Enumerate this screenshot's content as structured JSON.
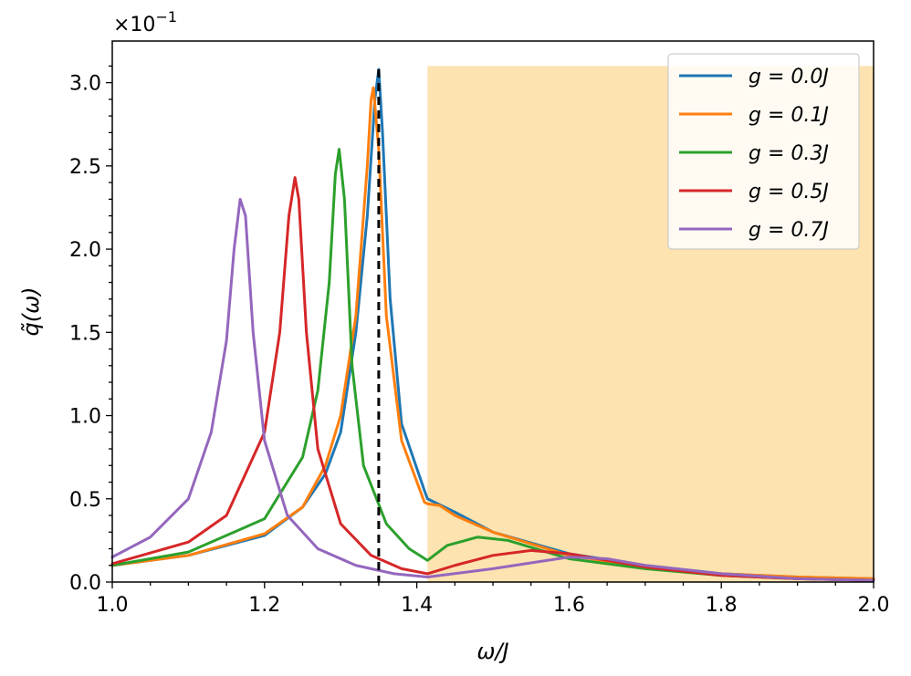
{
  "chart_data": {
    "type": "line",
    "xlabel": "ω/J",
    "ylabel": "q̃(ω)",
    "y_offset_label": "×10",
    "y_offset_exponent": "−1",
    "xlim": [
      1.0,
      2.0
    ],
    "ylim": [
      0.0,
      3.25
    ],
    "x_ticks": [
      "1.0",
      "1.2",
      "1.4",
      "1.6",
      "1.8",
      "2.0"
    ],
    "x_tick_values": [
      1.0,
      1.2,
      1.4,
      1.6,
      1.8,
      2.0
    ],
    "y_ticks": [
      "0.0",
      "0.5",
      "1.0",
      "1.5",
      "2.0",
      "2.5",
      "3.0"
    ],
    "y_tick_values": [
      0.0,
      0.5,
      1.0,
      1.5,
      2.0,
      2.5,
      3.0
    ],
    "legend_position": "top-right",
    "shaded_region": {
      "x_start": 1.414,
      "x_end": 2.0,
      "y_top": 3.1,
      "color": "#fde3b0"
    },
    "reference_line": {
      "x": 1.35,
      "y_top": 3.08,
      "style": "dashed",
      "color": "#000000"
    },
    "series": [
      {
        "name": "g = 0.0J",
        "color": "#1f77b4",
        "x": [
          1.0,
          1.1,
          1.2,
          1.25,
          1.28,
          1.3,
          1.32,
          1.335,
          1.345,
          1.35,
          1.355,
          1.365,
          1.38,
          1.41,
          1.414,
          1.45,
          1.5,
          1.6,
          1.7,
          1.8,
          1.9,
          2.0
        ],
        "y": [
          0.1,
          0.16,
          0.28,
          0.45,
          0.65,
          0.9,
          1.5,
          2.2,
          2.9,
          3.08,
          2.7,
          1.7,
          0.95,
          0.55,
          0.5,
          0.42,
          0.3,
          0.17,
          0.1,
          0.05,
          0.03,
          0.02
        ]
      },
      {
        "name": "g = 0.1J",
        "color": "#ff7f0e",
        "x": [
          1.0,
          1.1,
          1.2,
          1.25,
          1.28,
          1.3,
          1.32,
          1.335,
          1.34,
          1.343,
          1.35,
          1.36,
          1.38,
          1.41,
          1.414,
          1.43,
          1.45,
          1.5,
          1.6,
          1.7,
          1.8,
          1.9,
          2.0
        ],
        "y": [
          0.1,
          0.16,
          0.29,
          0.45,
          0.7,
          1.0,
          1.6,
          2.5,
          2.9,
          2.97,
          2.6,
          1.6,
          0.85,
          0.48,
          0.47,
          0.46,
          0.4,
          0.3,
          0.16,
          0.09,
          0.05,
          0.03,
          0.02
        ]
      },
      {
        "name": "g = 0.3J",
        "color": "#2ca02c",
        "x": [
          1.0,
          1.1,
          1.2,
          1.25,
          1.27,
          1.285,
          1.293,
          1.298,
          1.305,
          1.315,
          1.33,
          1.36,
          1.39,
          1.414,
          1.44,
          1.48,
          1.52,
          1.6,
          1.7,
          1.8,
          1.9,
          2.0
        ],
        "y": [
          0.1,
          0.18,
          0.38,
          0.75,
          1.15,
          1.8,
          2.45,
          2.6,
          2.3,
          1.3,
          0.7,
          0.35,
          0.2,
          0.13,
          0.22,
          0.27,
          0.25,
          0.14,
          0.08,
          0.04,
          0.02,
          0.01
        ]
      },
      {
        "name": "g = 0.5J",
        "color": "#d62728",
        "x": [
          1.0,
          1.1,
          1.15,
          1.2,
          1.22,
          1.232,
          1.24,
          1.245,
          1.255,
          1.27,
          1.3,
          1.34,
          1.38,
          1.414,
          1.45,
          1.5,
          1.55,
          1.6,
          1.7,
          1.8,
          1.9,
          2.0
        ],
        "y": [
          0.11,
          0.24,
          0.4,
          0.9,
          1.5,
          2.2,
          2.43,
          2.3,
          1.5,
          0.8,
          0.35,
          0.16,
          0.08,
          0.05,
          0.1,
          0.16,
          0.19,
          0.17,
          0.09,
          0.04,
          0.02,
          0.01
        ]
      },
      {
        "name": "g = 0.7J",
        "color": "#9467bd",
        "x": [
          1.0,
          1.05,
          1.1,
          1.13,
          1.15,
          1.16,
          1.168,
          1.175,
          1.185,
          1.2,
          1.23,
          1.27,
          1.32,
          1.37,
          1.414,
          1.5,
          1.6,
          1.65,
          1.7,
          1.8,
          1.9,
          2.0
        ],
        "y": [
          0.15,
          0.27,
          0.5,
          0.9,
          1.45,
          2.0,
          2.3,
          2.2,
          1.5,
          0.85,
          0.4,
          0.2,
          0.1,
          0.05,
          0.03,
          0.08,
          0.15,
          0.14,
          0.1,
          0.05,
          0.02,
          0.01
        ]
      }
    ]
  }
}
